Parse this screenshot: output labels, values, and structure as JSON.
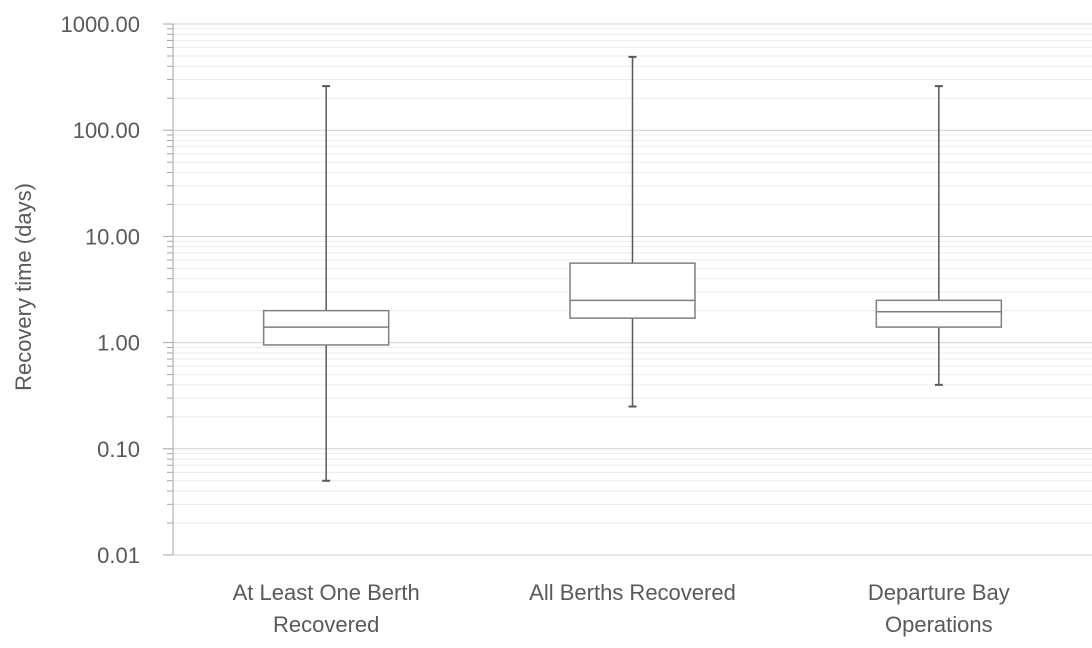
{
  "chart_data": {
    "type": "boxplot",
    "ylabel": "Recovery time (days)",
    "xlabel": "",
    "yscale": "log",
    "ylim": [
      0.01,
      1000
    ],
    "grid": true,
    "y_ticks": [
      "0.01",
      "0.10",
      "1.00",
      "10.00",
      "100.00",
      "1000.00"
    ],
    "categories": [
      [
        "At Least One Berth",
        "Recovered"
      ],
      [
        "All Berths Recovered"
      ],
      [
        "Departure Bay",
        "Operations"
      ]
    ],
    "boxes": [
      {
        "min": 0.05,
        "q1": 0.95,
        "median": 1.4,
        "q3": 2.0,
        "max": 260
      },
      {
        "min": 0.25,
        "q1": 1.7,
        "median": 2.5,
        "q3": 5.6,
        "max": 490
      },
      {
        "min": 0.4,
        "q1": 1.4,
        "median": 1.95,
        "q3": 2.5,
        "max": 260
      }
    ],
    "colors": {
      "box_stroke": "#7f7f7f",
      "whisker": "#595959",
      "grid": "#d9d9d9",
      "axis": "#a6a6a6",
      "text": "#595959"
    }
  }
}
